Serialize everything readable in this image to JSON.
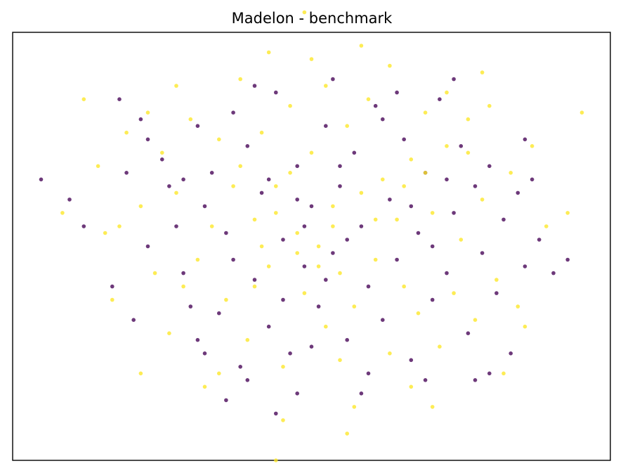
{
  "chart_data": {
    "type": "scatter",
    "title": "Madelon - benchmark",
    "xlabel": "",
    "ylabel": "",
    "xlim": [
      -4.2,
      4.2
    ],
    "ylim": [
      -3.2,
      3.2
    ],
    "grid": false,
    "ticks_visible": false,
    "series": [
      {
        "class": 0,
        "color": "#440154",
        "points": [
          [
            -3.8,
            1.0
          ],
          [
            -3.4,
            0.7
          ],
          [
            -3.2,
            0.3
          ],
          [
            -2.7,
            2.2
          ],
          [
            -2.4,
            1.9
          ],
          [
            -2.3,
            1.6
          ],
          [
            -2.1,
            1.3
          ],
          [
            -2.0,
            0.9
          ],
          [
            -1.9,
            0.3
          ],
          [
            -1.8,
            -0.4
          ],
          [
            -1.7,
            -0.9
          ],
          [
            -1.6,
            -1.4
          ],
          [
            -1.5,
            0.6
          ],
          [
            -1.4,
            1.1
          ],
          [
            -1.3,
            -1.0
          ],
          [
            -1.2,
            0.2
          ],
          [
            -1.1,
            2.0
          ],
          [
            -1.0,
            -1.8
          ],
          [
            -0.9,
            1.5
          ],
          [
            -0.8,
            -0.5
          ],
          [
            -0.7,
            0.8
          ],
          [
            -0.6,
            -1.2
          ],
          [
            -0.5,
            2.3
          ],
          [
            -0.4,
            0.1
          ],
          [
            -0.3,
            -1.6
          ],
          [
            -0.2,
            1.2
          ],
          [
            -0.1,
            -0.3
          ],
          [
            0.0,
            0.6
          ],
          [
            0.1,
            -0.9
          ],
          [
            0.2,
            1.8
          ],
          [
            0.3,
            -0.1
          ],
          [
            0.4,
            0.9
          ],
          [
            0.5,
            -1.4
          ],
          [
            0.6,
            1.4
          ],
          [
            0.7,
            0.3
          ],
          [
            0.8,
            -0.6
          ],
          [
            0.9,
            2.1
          ],
          [
            1.0,
            -1.1
          ],
          [
            1.1,
            0.7
          ],
          [
            1.2,
            -0.2
          ],
          [
            1.3,
            1.6
          ],
          [
            1.4,
            -1.7
          ],
          [
            1.5,
            0.2
          ],
          [
            1.6,
            1.1
          ],
          [
            1.7,
            -0.8
          ],
          [
            1.8,
            2.2
          ],
          [
            1.9,
            -0.4
          ],
          [
            2.0,
            0.5
          ],
          [
            2.1,
            1.5
          ],
          [
            2.2,
            -1.3
          ],
          [
            2.3,
            0.9
          ],
          [
            2.4,
            -0.1
          ],
          [
            2.5,
            1.2
          ],
          [
            2.6,
            -0.7
          ],
          [
            2.7,
            0.4
          ],
          [
            2.8,
            -1.6
          ],
          [
            2.9,
            0.8
          ],
          [
            3.0,
            -0.3
          ],
          [
            3.1,
            1.0
          ],
          [
            3.2,
            0.1
          ],
          [
            3.4,
            -0.4
          ],
          [
            3.6,
            -0.2
          ],
          [
            -2.8,
            -0.6
          ],
          [
            -2.5,
            -1.1
          ],
          [
            -2.3,
            0.0
          ],
          [
            -1.6,
            1.8
          ],
          [
            -0.8,
            2.4
          ],
          [
            0.3,
            2.5
          ],
          [
            1.2,
            2.3
          ],
          [
            2.0,
            2.5
          ],
          [
            -1.2,
            -2.3
          ],
          [
            -0.2,
            -2.2
          ],
          [
            0.8,
            -1.9
          ],
          [
            1.6,
            -2.0
          ],
          [
            2.3,
            -2.0
          ],
          [
            -0.5,
            -2.5
          ],
          [
            0.7,
            -2.2
          ],
          [
            -1.8,
            1.0
          ],
          [
            1.0,
            1.9
          ],
          [
            -0.4,
            -0.8
          ],
          [
            0.0,
            -1.5
          ],
          [
            0.5,
            0.1
          ],
          [
            -0.1,
            0.3
          ],
          [
            -1.1,
            -0.2
          ],
          [
            1.4,
            0.6
          ],
          [
            -0.6,
            1.0
          ],
          [
            0.2,
            -0.5
          ],
          [
            1.9,
            1.0
          ],
          [
            -1.5,
            -1.6
          ],
          [
            2.5,
            -1.9
          ],
          [
            -2.6,
            1.1
          ],
          [
            3.0,
            1.6
          ],
          [
            -0.9,
            -2.0
          ],
          [
            0.4,
            1.2
          ],
          [
            -0.2,
            0.7
          ],
          [
            1.7,
            0.0
          ]
        ]
      },
      {
        "class": 1,
        "color": "#fde725",
        "points": [
          [
            -3.2,
            2.2
          ],
          [
            -3.0,
            1.2
          ],
          [
            -2.9,
            0.2
          ],
          [
            -2.8,
            -0.8
          ],
          [
            -2.6,
            1.7
          ],
          [
            -2.4,
            0.6
          ],
          [
            -2.2,
            -0.4
          ],
          [
            -2.1,
            1.4
          ],
          [
            -2.0,
            -1.3
          ],
          [
            -1.9,
            0.8
          ],
          [
            -1.7,
            1.9
          ],
          [
            -1.6,
            -0.2
          ],
          [
            -1.4,
            0.3
          ],
          [
            -1.3,
            1.6
          ],
          [
            -1.2,
            -0.8
          ],
          [
            -1.1,
            0.9
          ],
          [
            -1.0,
            2.5
          ],
          [
            -0.9,
            -1.4
          ],
          [
            -0.8,
            0.4
          ],
          [
            -0.7,
            1.7
          ],
          [
            -0.6,
            -0.3
          ],
          [
            -0.5,
            0.9
          ],
          [
            -0.4,
            -1.8
          ],
          [
            -0.3,
            2.1
          ],
          [
            -0.2,
            0.2
          ],
          [
            -0.1,
            -0.7
          ],
          [
            0.0,
            1.4
          ],
          [
            0.1,
            0.0
          ],
          [
            0.2,
            -1.2
          ],
          [
            0.3,
            0.6
          ],
          [
            0.4,
            -0.4
          ],
          [
            0.5,
            1.8
          ],
          [
            0.6,
            -0.9
          ],
          [
            0.7,
            0.8
          ],
          [
            0.8,
            2.2
          ],
          [
            0.9,
            -0.2
          ],
          [
            1.0,
            1.0
          ],
          [
            1.1,
            -1.6
          ],
          [
            1.2,
            0.4
          ],
          [
            1.3,
            -0.6
          ],
          [
            1.4,
            1.3
          ],
          [
            1.5,
            -1.0
          ],
          [
            1.6,
            2.0
          ],
          [
            1.7,
            0.5
          ],
          [
            1.8,
            -1.5
          ],
          [
            1.9,
            1.5
          ],
          [
            2.0,
            -0.7
          ],
          [
            2.1,
            0.1
          ],
          [
            2.2,
            1.9
          ],
          [
            2.3,
            -1.1
          ],
          [
            2.4,
            0.7
          ],
          [
            2.5,
            2.1
          ],
          [
            2.6,
            -0.5
          ],
          [
            2.8,
            1.1
          ],
          [
            3.0,
            -1.2
          ],
          [
            3.3,
            0.3
          ],
          [
            3.6,
            0.5
          ],
          [
            3.8,
            2.0
          ],
          [
            -0.4,
            -2.6
          ],
          [
            0.5,
            -2.8
          ],
          [
            -0.1,
            3.5
          ],
          [
            -0.5,
            -3.2
          ],
          [
            1.7,
            -2.4
          ],
          [
            2.4,
            2.6
          ],
          [
            -1.5,
            -2.1
          ],
          [
            0.0,
            2.8
          ],
          [
            -1.8,
            -0.6
          ],
          [
            1.1,
            2.7
          ],
          [
            2.7,
            -1.9
          ],
          [
            -2.3,
            2.0
          ],
          [
            -3.5,
            0.5
          ],
          [
            -0.2,
            -0.1
          ],
          [
            0.3,
            0.3
          ],
          [
            -0.7,
            0.0
          ],
          [
            0.9,
            0.4
          ],
          [
            -1.3,
            -1.9
          ],
          [
            0.6,
            -2.4
          ],
          [
            1.4,
            -2.1
          ],
          [
            -0.6,
            2.9
          ],
          [
            2.9,
            -0.9
          ],
          [
            -2.7,
            0.3
          ],
          [
            1.9,
            2.3
          ],
          [
            -1.0,
            1.2
          ],
          [
            0.4,
            -1.7
          ],
          [
            2.2,
            1.4
          ],
          [
            -0.3,
            1.1
          ],
          [
            0.1,
            -0.3
          ],
          [
            1.3,
            0.9
          ],
          [
            -1.9,
            2.4
          ],
          [
            3.1,
            1.5
          ],
          [
            -2.4,
            -1.9
          ],
          [
            0.7,
            3.0
          ],
          [
            -0.8,
            -0.6
          ],
          [
            1.6,
            1.1
          ],
          [
            -0.5,
            0.5
          ],
          [
            0.2,
            2.4
          ]
        ]
      }
    ]
  }
}
